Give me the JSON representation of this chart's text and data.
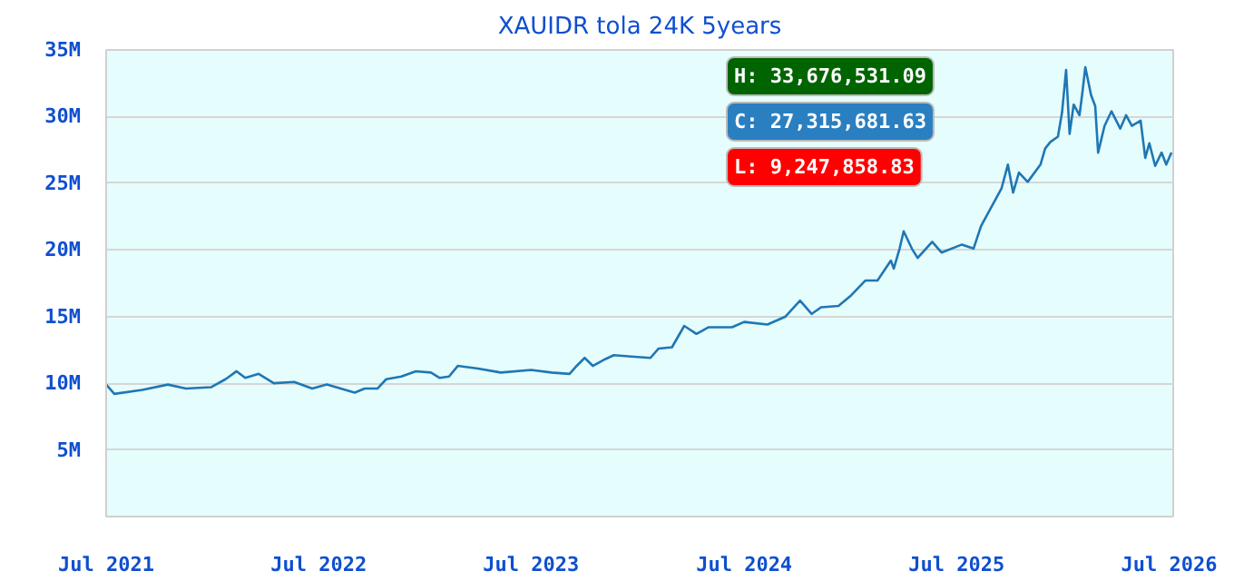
{
  "chart_data": {
    "type": "line",
    "title": "XAUIDR tola 24K 5years",
    "x": [
      "2021-07-01",
      "2021-07-15",
      "2021-09-01",
      "2021-10-15",
      "2021-11-15",
      "2021-12-28",
      "2022-01-22",
      "2022-02-10",
      "2022-02-25",
      "2022-03-20",
      "2022-04-15",
      "2022-05-20",
      "2022-06-20",
      "2022-07-15",
      "2022-09-01",
      "2022-09-18",
      "2022-10-10",
      "2022-10-25",
      "2022-11-20",
      "2022-12-15",
      "2023-01-10",
      "2023-01-25",
      "2023-02-10",
      "2023-02-25",
      "2023-04-01",
      "2023-05-10",
      "2023-07-01",
      "2023-08-05",
      "2023-09-05",
      "2023-09-15",
      "2023-10-01",
      "2023-10-15",
      "2023-11-05",
      "2023-11-20",
      "2023-12-20",
      "2024-01-22",
      "2024-02-05",
      "2024-02-28",
      "2024-03-20",
      "2024-04-10",
      "2024-05-01",
      "2024-06-10",
      "2024-07-01",
      "2024-08-10",
      "2024-09-10",
      "2024-10-05",
      "2024-10-25",
      "2024-11-10",
      "2024-12-10",
      "2025-01-01",
      "2025-01-25",
      "2025-02-15",
      "2025-03-10",
      "2025-03-15",
      "2025-03-25",
      "2025-04-01",
      "2025-04-15",
      "2025-04-25",
      "2025-05-20",
      "2025-06-05",
      "2025-07-10",
      "2025-07-30",
      "2025-08-12",
      "2025-09-16",
      "2025-09-27",
      "2025-10-06",
      "2025-10-16",
      "2025-10-31",
      "2025-11-22",
      "2025-11-30",
      "2025-12-09",
      "2025-12-22",
      "2025-12-29",
      "2026-01-05",
      "2026-01-11",
      "2026-01-18",
      "2026-01-28",
      "2026-02-02",
      "2026-02-07",
      "2026-02-17",
      "2026-02-24",
      "2026-03-01",
      "2026-03-06",
      "2026-03-12",
      "2026-03-24",
      "2026-04-08",
      "2026-04-18",
      "2026-04-28",
      "2026-05-13",
      "2026-05-21",
      "2026-05-28",
      "2026-06-07",
      "2026-06-18",
      "2026-06-26",
      "2026-07-05"
    ],
    "series": [
      {
        "color": "#1f77b4",
        "values": [
          9.9,
          9.2,
          9.5,
          9.9,
          9.6,
          9.7,
          10.3,
          10.9,
          10.4,
          10.7,
          10.0,
          10.1,
          9.6,
          9.9,
          9.3,
          9.6,
          9.6,
          10.3,
          10.5,
          10.9,
          10.8,
          10.4,
          10.5,
          11.3,
          11.1,
          10.8,
          11.0,
          10.8,
          10.7,
          11.2,
          11.9,
          11.3,
          11.8,
          12.1,
          12.0,
          11.9,
          12.6,
          12.7,
          14.3,
          13.7,
          14.2,
          14.2,
          14.6,
          14.4,
          15.0,
          16.2,
          15.2,
          15.7,
          15.8,
          16.6,
          17.7,
          17.7,
          19.2,
          18.6,
          20.1,
          21.4,
          20.1,
          19.4,
          20.6,
          19.8,
          20.4,
          20.1,
          21.8,
          24.6,
          26.4,
          24.3,
          25.8,
          25.1,
          26.4,
          27.6,
          28.1,
          28.5,
          30.3,
          33.5,
          28.7,
          30.9,
          30.1,
          31.8,
          33.7,
          31.6,
          30.8,
          27.3,
          28.2,
          29.3,
          30.4,
          29.1,
          30.1,
          29.3,
          29.7,
          26.9,
          28.0,
          26.3,
          27.3,
          26.4,
          27.3
        ]
      }
    ],
    "xlim": [
      "2021-07-01",
      "2026-07-08"
    ],
    "xticks": [
      {
        "value": "2021-07-01",
        "label": "Jul 2021"
      },
      {
        "value": "2022-07-01",
        "label": "Jul 2022"
      },
      {
        "value": "2023-07-01",
        "label": "Jul 2023"
      },
      {
        "value": "2024-07-01",
        "label": "Jul 2024"
      },
      {
        "value": "2025-07-01",
        "label": "Jul 2025"
      },
      {
        "value": "2026-07-01",
        "label": "Jul 2026"
      }
    ],
    "ylim": [
      0,
      35
    ],
    "yticks": [
      {
        "value": 5,
        "label": "5M"
      },
      {
        "value": 10,
        "label": "10M"
      },
      {
        "value": 15,
        "label": "15M"
      },
      {
        "value": 20,
        "label": "20M"
      },
      {
        "value": 25,
        "label": "25M"
      },
      {
        "value": 30,
        "label": "30M"
      },
      {
        "value": 35,
        "label": "35M"
      }
    ],
    "grid": "y",
    "marker": "none",
    "line_style": "solid",
    "annotations": [
      "H: 33,676,531.09",
      "C: 27,315,681.63",
      "L: 9,247,858.83"
    ]
  }
}
